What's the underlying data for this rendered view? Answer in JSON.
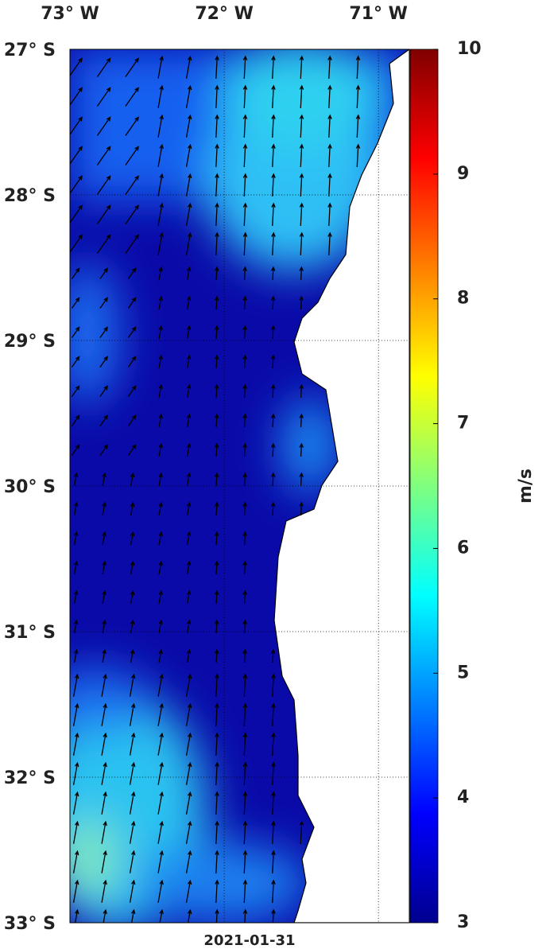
{
  "map": {
    "type": "map",
    "date": "2021-01-31",
    "xlim": [
      -73.0,
      -70.8
    ],
    "ylim": [
      -33,
      -27
    ],
    "xticks": [
      {
        "value": -73,
        "label": "73° W"
      },
      {
        "value": -72,
        "label": "72° W"
      },
      {
        "value": -71,
        "label": "71° W"
      }
    ],
    "yticks": [
      {
        "value": -27,
        "label": "27° S"
      },
      {
        "value": -28,
        "label": "28° S"
      },
      {
        "value": -29,
        "label": "29° S"
      },
      {
        "value": -30,
        "label": "30° S"
      },
      {
        "value": -31,
        "label": "31° S"
      },
      {
        "value": -32,
        "label": "32° S"
      },
      {
        "value": -33,
        "label": "33° S"
      }
    ],
    "colorbar": {
      "label": "m/s",
      "lim": [
        3,
        10
      ],
      "ticks": [
        3,
        4,
        5,
        6,
        7,
        8,
        9,
        10
      ]
    }
  }
}
